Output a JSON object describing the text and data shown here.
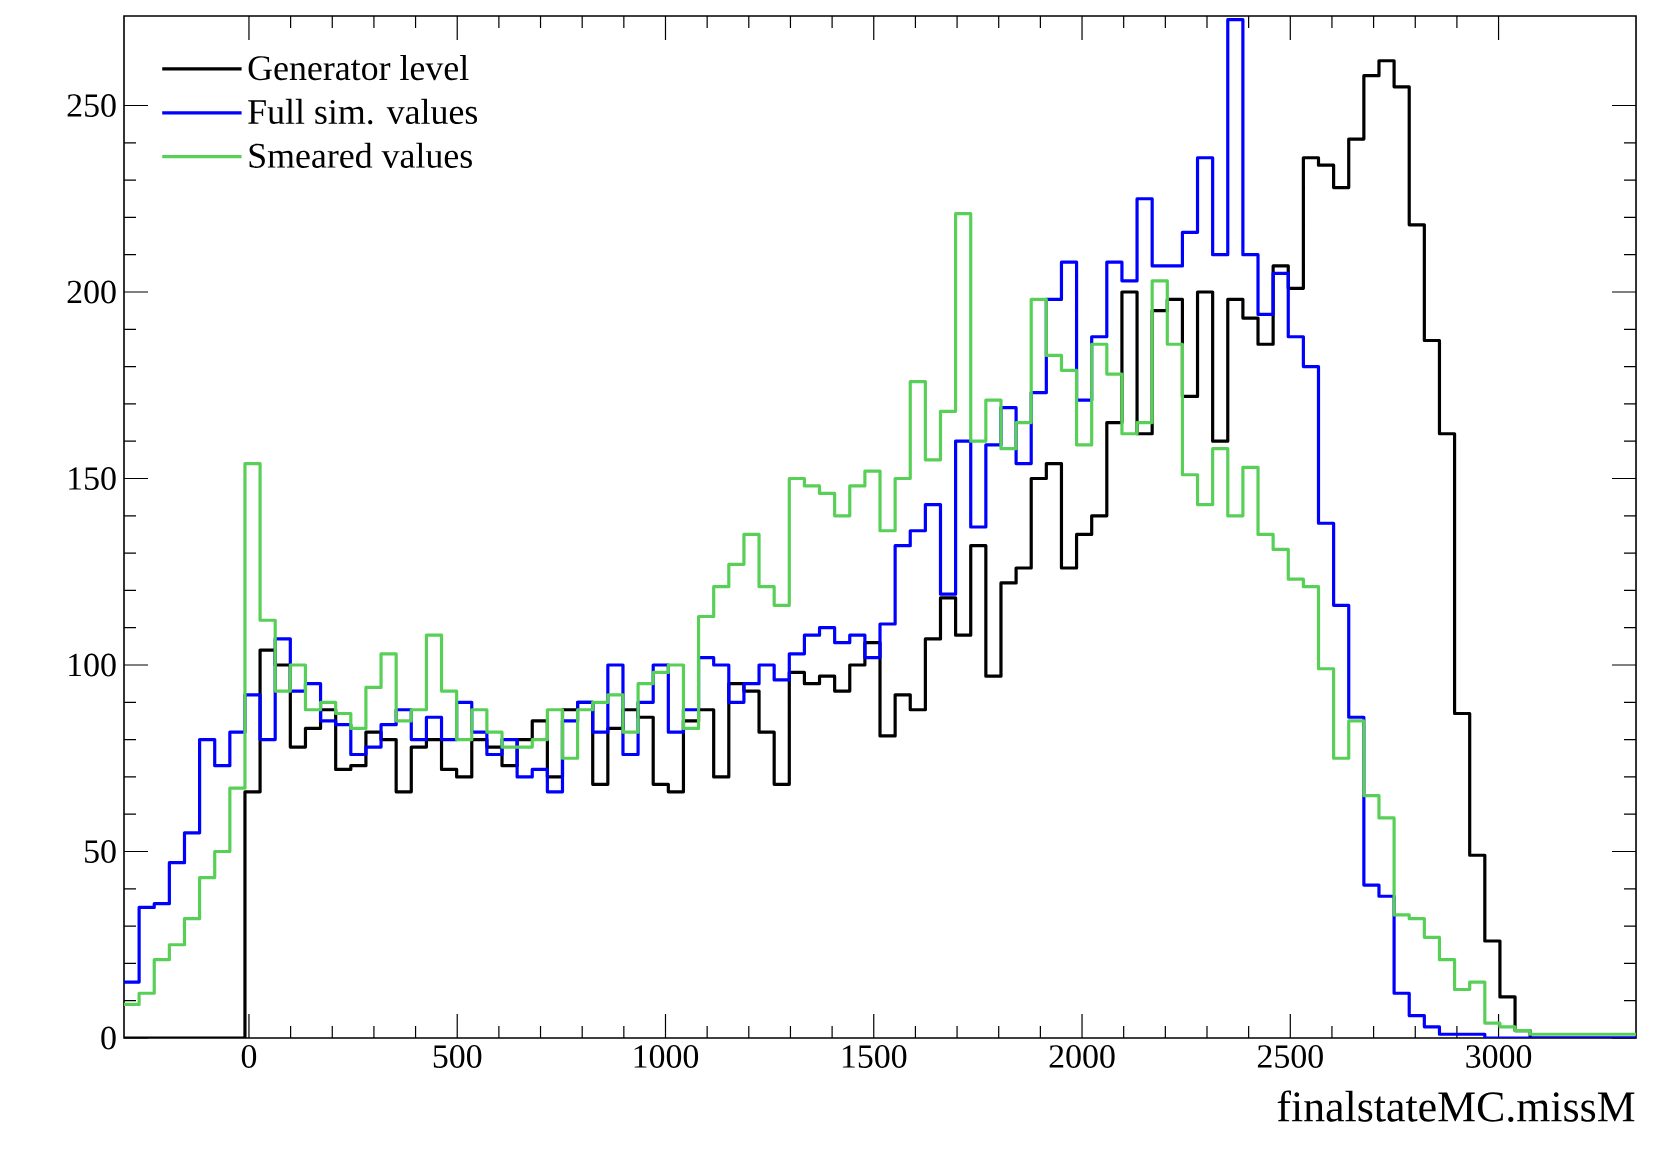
{
  "chart_data": {
    "type": "histogram",
    "xlabel": "finalstateMC.missM",
    "legend": "top left",
    "xlim": [
      -300,
      3330
    ],
    "ylim": [
      0,
      274
    ],
    "xticks": [
      0,
      500,
      1000,
      1500,
      2000,
      2500,
      3000
    ],
    "yticks": [
      0,
      50,
      100,
      150,
      200,
      250
    ],
    "bins": [
      -300,
      -263.7,
      -227.4,
      -191.1,
      -154.8,
      -118.5,
      -82.2,
      -45.9,
      -9.6,
      26.7,
      63,
      99.3,
      135.6,
      171.9,
      208.2,
      244.5,
      280.8,
      317.1,
      353.4,
      389.7,
      426,
      462.3,
      498.6,
      534.9,
      571.2,
      607.5,
      643.8,
      680.1,
      716.4,
      752.7,
      789,
      825.3,
      861.6,
      897.9,
      934.2,
      970.5,
      1006.8,
      1043.1,
      1079.4,
      1115.7,
      1152,
      1188.3,
      1224.6,
      1260.9,
      1297.2,
      1333.5,
      1369.8,
      1406.1,
      1442.4,
      1478.7,
      1515,
      1551.3,
      1587.6,
      1623.9,
      1660.2,
      1696.5,
      1732.8,
      1769.1,
      1805.4,
      1841.7,
      1878,
      1914.3,
      1950.6,
      1986.9,
      2023.2,
      2059.5,
      2095.8,
      2132.1,
      2168.4,
      2204.7,
      2241,
      2277.3,
      2313.6,
      2349.9,
      2386.2,
      2422.5,
      2458.8,
      2495.1,
      2531.4,
      2567.7,
      2604,
      2640.3,
      2676.6,
      2712.9,
      2749.2,
      2785.5,
      2821.8,
      2858.1,
      2894.4,
      2930.7,
      2967,
      3003.3,
      3039.6,
      3075.9,
      3112.2,
      3148.5,
      3184.8,
      3221.1,
      3257.4,
      3293.7,
      3330
    ],
    "series": [
      {
        "name": "Generator level",
        "color": "#000000",
        "values": [
          0,
          0,
          0,
          0,
          0,
          0,
          0,
          0,
          66,
          104,
          100,
          78,
          83,
          88,
          72,
          73,
          82,
          80,
          66,
          78,
          80,
          72,
          70,
          80,
          78,
          73,
          80,
          85,
          70,
          88,
          90,
          68,
          83,
          88,
          86,
          68,
          66,
          85,
          88,
          70,
          95,
          93,
          82,
          68,
          98,
          95,
          97,
          93,
          100,
          106,
          81,
          92,
          88,
          107,
          118,
          108,
          132,
          97,
          122,
          126,
          150,
          154,
          126,
          135,
          140,
          165,
          200,
          162,
          195,
          198,
          172,
          200,
          160,
          198,
          193,
          186,
          207,
          201,
          236,
          234,
          228,
          241,
          258,
          262,
          255,
          218,
          187,
          162,
          87,
          49,
          26,
          11,
          2,
          0,
          0,
          0,
          0,
          0,
          0,
          0
        ]
      },
      {
        "name": "Full sim. values",
        "color": "#0000ff",
        "values": [
          15,
          35,
          36,
          47,
          55,
          80,
          73,
          82,
          92,
          80,
          107,
          93,
          95,
          85,
          84,
          76,
          78,
          84,
          88,
          80,
          86,
          80,
          90,
          82,
          76,
          80,
          70,
          72,
          66,
          85,
          90,
          82,
          100,
          76,
          90,
          100,
          82,
          88,
          102,
          100,
          90,
          95,
          100,
          96,
          103,
          108,
          110,
          106,
          108,
          102,
          111,
          132,
          136,
          143,
          119,
          160,
          137,
          159,
          169,
          154,
          173,
          198,
          208,
          171,
          188,
          208,
          203,
          225,
          207,
          207,
          216,
          236,
          210,
          273,
          210,
          194,
          205,
          188,
          180,
          138,
          116,
          86,
          41,
          38,
          12,
          6,
          3,
          1,
          1,
          1,
          0,
          0,
          0,
          0,
          0,
          0,
          0,
          0,
          0,
          0
        ]
      },
      {
        "name": "Smeared values",
        "color": "#58d058",
        "values": [
          9,
          12,
          21,
          25,
          32,
          43,
          50,
          67,
          154,
          112,
          93,
          100,
          88,
          90,
          87,
          83,
          94,
          103,
          85,
          88,
          108,
          93,
          80,
          88,
          82,
          78,
          78,
          80,
          88,
          75,
          88,
          90,
          92,
          82,
          95,
          98,
          100,
          83,
          113,
          121,
          127,
          135,
          121,
          116,
          150,
          148,
          146,
          140,
          148,
          152,
          136,
          150,
          176,
          155,
          168,
          221,
          160,
          171,
          158,
          165,
          198,
          183,
          179,
          159,
          186,
          178,
          162,
          165,
          203,
          186,
          151,
          143,
          158,
          140,
          153,
          135,
          131,
          123,
          121,
          99,
          75,
          85,
          65,
          59,
          33,
          32,
          27,
          21,
          13,
          15,
          4,
          3,
          2,
          1,
          1,
          1,
          1,
          1,
          1,
          1
        ]
      }
    ]
  }
}
